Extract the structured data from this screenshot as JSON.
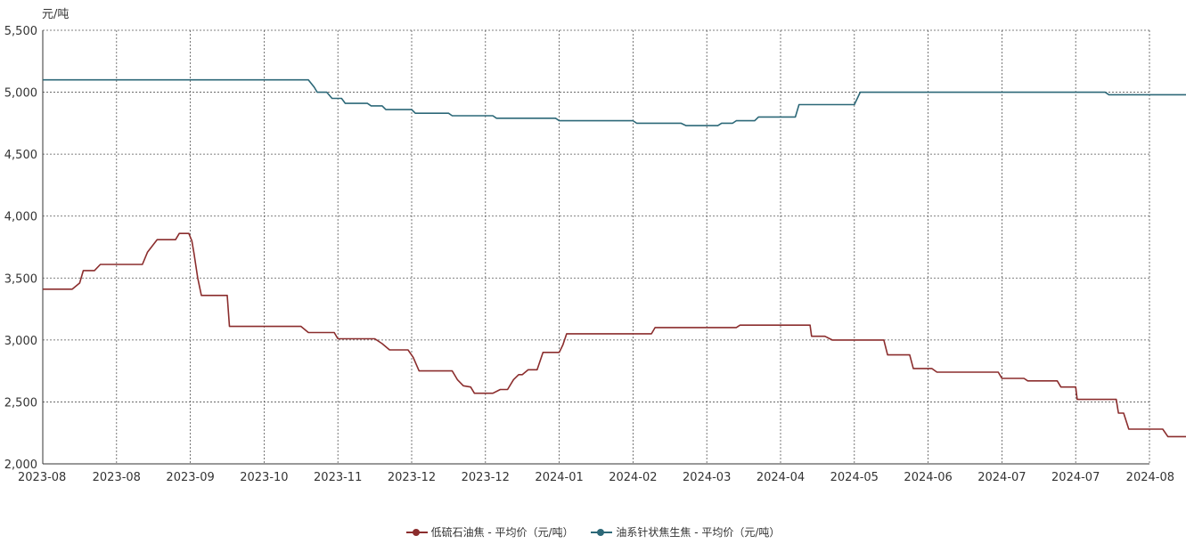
{
  "chart_data": {
    "type": "line",
    "unit_label": "元/吨",
    "y_ticks": [
      "5,500",
      "5,000",
      "4,500",
      "4,000",
      "3,500",
      "3,000",
      "2,500",
      "2,000"
    ],
    "y_tick_values": [
      5500,
      5000,
      4500,
      4000,
      3500,
      3000,
      2500,
      2000
    ],
    "ylim": [
      2000,
      5500
    ],
    "x_ticks": [
      "2023-08",
      "2023-08",
      "2023-09",
      "2023-10",
      "2023-11",
      "2023-12",
      "2023-12",
      "2024-01",
      "2024-02",
      "2024-03",
      "2024-04",
      "2024-05",
      "2024-06",
      "2024-07",
      "2024-07",
      "2024-08"
    ],
    "grid": true,
    "legend_position": "bottom-center",
    "series": [
      {
        "name": "低硫石油焦 - 平均价（元/吨）",
        "color": "#8b2d2d",
        "points": [
          [
            0,
            3410
          ],
          [
            0.4,
            3410
          ],
          [
            0.5,
            3460
          ],
          [
            0.55,
            3560
          ],
          [
            0.7,
            3560
          ],
          [
            0.78,
            3610
          ],
          [
            1.35,
            3610
          ],
          [
            1.42,
            3710
          ],
          [
            1.55,
            3810
          ],
          [
            1.8,
            3810
          ],
          [
            1.85,
            3860
          ],
          [
            1.98,
            3860
          ],
          [
            2.02,
            3800
          ],
          [
            2.05,
            3700
          ],
          [
            2.1,
            3500
          ],
          [
            2.15,
            3360
          ],
          [
            2.5,
            3360
          ],
          [
            2.53,
            3110
          ],
          [
            3.5,
            3110
          ],
          [
            3.6,
            3060
          ],
          [
            3.95,
            3060
          ],
          [
            4.0,
            3010
          ],
          [
            4.5,
            3010
          ],
          [
            4.6,
            2970
          ],
          [
            4.7,
            2920
          ],
          [
            4.95,
            2920
          ],
          [
            5.02,
            2860
          ],
          [
            5.1,
            2750
          ],
          [
            5.55,
            2750
          ],
          [
            5.62,
            2680
          ],
          [
            5.7,
            2630
          ],
          [
            5.8,
            2620
          ],
          [
            5.85,
            2570
          ],
          [
            6.1,
            2570
          ],
          [
            6.2,
            2600
          ],
          [
            6.3,
            2600
          ],
          [
            6.38,
            2680
          ],
          [
            6.45,
            2720
          ],
          [
            6.5,
            2720
          ],
          [
            6.58,
            2760
          ],
          [
            6.7,
            2760
          ],
          [
            6.78,
            2900
          ],
          [
            7.0,
            2900
          ],
          [
            7.05,
            2960
          ],
          [
            7.1,
            3050
          ],
          [
            8.25,
            3050
          ],
          [
            8.3,
            3100
          ],
          [
            9.4,
            3100
          ],
          [
            9.45,
            3120
          ],
          [
            10.4,
            3120
          ],
          [
            10.42,
            3030
          ],
          [
            10.6,
            3030
          ],
          [
            10.7,
            3000
          ],
          [
            11.4,
            3000
          ],
          [
            11.45,
            2880
          ],
          [
            11.75,
            2880
          ],
          [
            11.8,
            2770
          ],
          [
            12.05,
            2770
          ],
          [
            12.12,
            2740
          ],
          [
            12.95,
            2740
          ],
          [
            13.0,
            2690
          ],
          [
            13.3,
            2690
          ],
          [
            13.35,
            2670
          ],
          [
            13.75,
            2670
          ],
          [
            13.8,
            2620
          ],
          [
            14.0,
            2620
          ],
          [
            14.02,
            2520
          ],
          [
            14.55,
            2520
          ],
          [
            14.58,
            2410
          ],
          [
            14.65,
            2410
          ],
          [
            14.72,
            2280
          ],
          [
            15.18,
            2280
          ],
          [
            15.25,
            2220
          ],
          [
            15.5,
            2220
          ]
        ]
      },
      {
        "name": "油系针状焦生焦 - 平均价（元/吨）",
        "color": "#2c6878",
        "points": [
          [
            0,
            5100
          ],
          [
            3.6,
            5100
          ],
          [
            3.68,
            5040
          ],
          [
            3.72,
            5000
          ],
          [
            3.85,
            5000
          ],
          [
            3.92,
            4950
          ],
          [
            4.05,
            4950
          ],
          [
            4.1,
            4910
          ],
          [
            4.4,
            4910
          ],
          [
            4.45,
            4890
          ],
          [
            4.6,
            4890
          ],
          [
            4.65,
            4860
          ],
          [
            5.0,
            4860
          ],
          [
            5.05,
            4830
          ],
          [
            5.5,
            4830
          ],
          [
            5.55,
            4810
          ],
          [
            6.1,
            4810
          ],
          [
            6.15,
            4790
          ],
          [
            6.95,
            4790
          ],
          [
            7.0,
            4770
          ],
          [
            8.0,
            4770
          ],
          [
            8.05,
            4750
          ],
          [
            8.65,
            4750
          ],
          [
            8.72,
            4730
          ],
          [
            9.15,
            4730
          ],
          [
            9.2,
            4750
          ],
          [
            9.35,
            4750
          ],
          [
            9.4,
            4770
          ],
          [
            9.65,
            4770
          ],
          [
            9.7,
            4800
          ],
          [
            10.2,
            4800
          ],
          [
            10.25,
            4900
          ],
          [
            11.0,
            4900
          ],
          [
            11.08,
            5000
          ],
          [
            14.4,
            5000
          ],
          [
            14.45,
            4980
          ],
          [
            15.5,
            4980
          ]
        ]
      }
    ]
  }
}
